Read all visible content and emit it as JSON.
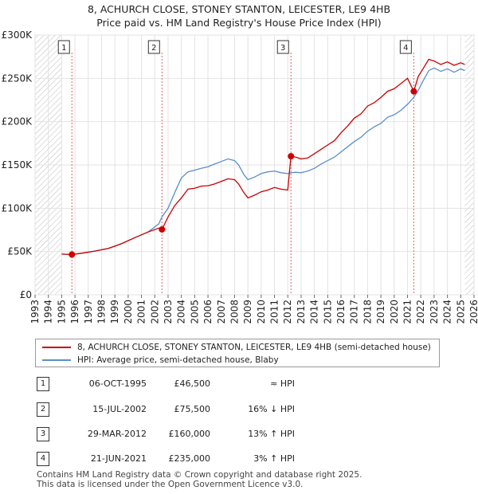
{
  "title_line1": "8, ACHURCH CLOSE, STONEY STANTON, LEICESTER, LE9 4HB",
  "title_line2": "Price paid vs. HM Land Registry's House Price Index (HPI)",
  "chart_data": {
    "type": "line",
    "x_range": [
      1993,
      2026
    ],
    "ylim": [
      0,
      300000
    ],
    "y_ticks": [
      {
        "value": 0,
        "label": "£0"
      },
      {
        "value": 50000,
        "label": "£50K"
      },
      {
        "value": 100000,
        "label": "£100K"
      },
      {
        "value": 150000,
        "label": "£150K"
      },
      {
        "value": 200000,
        "label": "£200K"
      },
      {
        "value": 250000,
        "label": "£250K"
      },
      {
        "value": 300000,
        "label": "£300K"
      }
    ],
    "x_ticks": [
      "1993",
      "1994",
      "1995",
      "1996",
      "1997",
      "1998",
      "1999",
      "2000",
      "2001",
      "2002",
      "2003",
      "2004",
      "2005",
      "2006",
      "2007",
      "2008",
      "2009",
      "2010",
      "2011",
      "2012",
      "2013",
      "2014",
      "2015",
      "2016",
      "2017",
      "2018",
      "2019",
      "2020",
      "2021",
      "2022",
      "2023",
      "2024",
      "2025",
      "2026"
    ],
    "hatched_before": 1995.0,
    "hatched_after": 2025.3,
    "series": [
      {
        "name": "8, ACHURCH CLOSE, STONEY STANTON, LEICESTER, LE9 4HB (semi-detached house)",
        "color": "#cc0000",
        "points": [
          [
            1995.0,
            47000
          ],
          [
            1995.77,
            46500
          ],
          [
            1996.5,
            48000
          ],
          [
            1997.5,
            50500
          ],
          [
            1998.5,
            53500
          ],
          [
            1999.5,
            59000
          ],
          [
            2000.5,
            66000
          ],
          [
            2001.5,
            72500
          ],
          [
            2002.3,
            77000
          ],
          [
            2002.54,
            75500
          ],
          [
            2003.0,
            90000
          ],
          [
            2003.5,
            103000
          ],
          [
            2004.0,
            112000
          ],
          [
            2004.5,
            122000
          ],
          [
            2005.0,
            123000
          ],
          [
            2005.5,
            125500
          ],
          [
            2006.0,
            126000
          ],
          [
            2006.5,
            128000
          ],
          [
            2007.0,
            131000
          ],
          [
            2007.5,
            134000
          ],
          [
            2008.0,
            133000
          ],
          [
            2008.3,
            128000
          ],
          [
            2008.7,
            118000
          ],
          [
            2009.0,
            112000
          ],
          [
            2009.5,
            115000
          ],
          [
            2010.0,
            119000
          ],
          [
            2010.5,
            121000
          ],
          [
            2011.0,
            124000
          ],
          [
            2011.5,
            122000
          ],
          [
            2012.0,
            121000
          ],
          [
            2012.24,
            160000
          ],
          [
            2012.6,
            159000
          ],
          [
            2013.0,
            157000
          ],
          [
            2013.5,
            158000
          ],
          [
            2014.0,
            163000
          ],
          [
            2014.5,
            168000
          ],
          [
            2015.0,
            173000
          ],
          [
            2015.5,
            178000
          ],
          [
            2016.0,
            187000
          ],
          [
            2016.5,
            195000
          ],
          [
            2017.0,
            204000
          ],
          [
            2017.5,
            209000
          ],
          [
            2018.0,
            218000
          ],
          [
            2018.5,
            222000
          ],
          [
            2019.0,
            228000
          ],
          [
            2019.5,
            235000
          ],
          [
            2020.0,
            238000
          ],
          [
            2020.5,
            244000
          ],
          [
            2021.0,
            250000
          ],
          [
            2021.47,
            235000
          ],
          [
            2021.8,
            252000
          ],
          [
            2022.2,
            262000
          ],
          [
            2022.6,
            272000
          ],
          [
            2023.0,
            270000
          ],
          [
            2023.5,
            266000
          ],
          [
            2024.0,
            269000
          ],
          [
            2024.5,
            265000
          ],
          [
            2025.0,
            268000
          ],
          [
            2025.3,
            266000
          ]
        ]
      },
      {
        "name": "HPI: Average price, semi-detached house, Blaby",
        "color": "#5b8ec9",
        "points": [
          [
            1995.0,
            47000
          ],
          [
            1995.77,
            46500
          ],
          [
            1996.5,
            48000
          ],
          [
            1997.5,
            50500
          ],
          [
            1998.5,
            53500
          ],
          [
            1999.5,
            59000
          ],
          [
            2000.5,
            66000
          ],
          [
            2001.5,
            72500
          ],
          [
            2002.3,
            82000
          ],
          [
            2002.54,
            90000
          ],
          [
            2003.0,
            100000
          ],
          [
            2003.5,
            118000
          ],
          [
            2004.0,
            135000
          ],
          [
            2004.5,
            142000
          ],
          [
            2005.0,
            144000
          ],
          [
            2005.5,
            146000
          ],
          [
            2006.0,
            148000
          ],
          [
            2006.5,
            151000
          ],
          [
            2007.0,
            154000
          ],
          [
            2007.5,
            157000
          ],
          [
            2008.0,
            155000
          ],
          [
            2008.3,
            150000
          ],
          [
            2008.7,
            139000
          ],
          [
            2009.0,
            133000
          ],
          [
            2009.5,
            136000
          ],
          [
            2010.0,
            140000
          ],
          [
            2010.5,
            142000
          ],
          [
            2011.0,
            143000
          ],
          [
            2011.5,
            141000
          ],
          [
            2012.0,
            140000
          ],
          [
            2012.24,
            141000
          ],
          [
            2012.6,
            141500
          ],
          [
            2013.0,
            141000
          ],
          [
            2013.5,
            143000
          ],
          [
            2014.0,
            146000
          ],
          [
            2014.5,
            151000
          ],
          [
            2015.0,
            155000
          ],
          [
            2015.5,
            159000
          ],
          [
            2016.0,
            165000
          ],
          [
            2016.5,
            171000
          ],
          [
            2017.0,
            177000
          ],
          [
            2017.5,
            182000
          ],
          [
            2018.0,
            189000
          ],
          [
            2018.5,
            194000
          ],
          [
            2019.0,
            198000
          ],
          [
            2019.5,
            205000
          ],
          [
            2020.0,
            208000
          ],
          [
            2020.5,
            213000
          ],
          [
            2021.0,
            220000
          ],
          [
            2021.47,
            228000
          ],
          [
            2021.8,
            236000
          ],
          [
            2022.2,
            248000
          ],
          [
            2022.6,
            259000
          ],
          [
            2023.0,
            262000
          ],
          [
            2023.5,
            258000
          ],
          [
            2024.0,
            261000
          ],
          [
            2024.5,
            257000
          ],
          [
            2025.0,
            261000
          ],
          [
            2025.3,
            259000
          ]
        ]
      }
    ],
    "sales": [
      {
        "num": "1",
        "x": 1995.77,
        "price": 46500
      },
      {
        "num": "2",
        "x": 2002.54,
        "price": 75500
      },
      {
        "num": "3",
        "x": 2012.24,
        "price": 160000
      },
      {
        "num": "4",
        "x": 2021.47,
        "price": 235000
      }
    ]
  },
  "legend": {
    "property_label": "8, ACHURCH CLOSE, STONEY STANTON, LEICESTER, LE9 4HB (semi-detached house)",
    "hpi_label": "HPI: Average price, semi-detached house, Blaby"
  },
  "transactions": [
    {
      "num": "1",
      "date": "06-OCT-1995",
      "price": "£46,500",
      "hpi": "≈ HPI"
    },
    {
      "num": "2",
      "date": "15-JUL-2002",
      "price": "£75,500",
      "hpi": "16% ↓ HPI"
    },
    {
      "num": "3",
      "date": "29-MAR-2012",
      "price": "£160,000",
      "hpi": "13% ↑ HPI"
    },
    {
      "num": "4",
      "date": "21-JUN-2021",
      "price": "£235,000",
      "hpi": "3% ↑ HPI"
    }
  ],
  "footer_line1": "Contains HM Land Registry data © Crown copyright and database right 2025.",
  "footer_line2": "This data is licensed under the Open Government Licence v3.0."
}
